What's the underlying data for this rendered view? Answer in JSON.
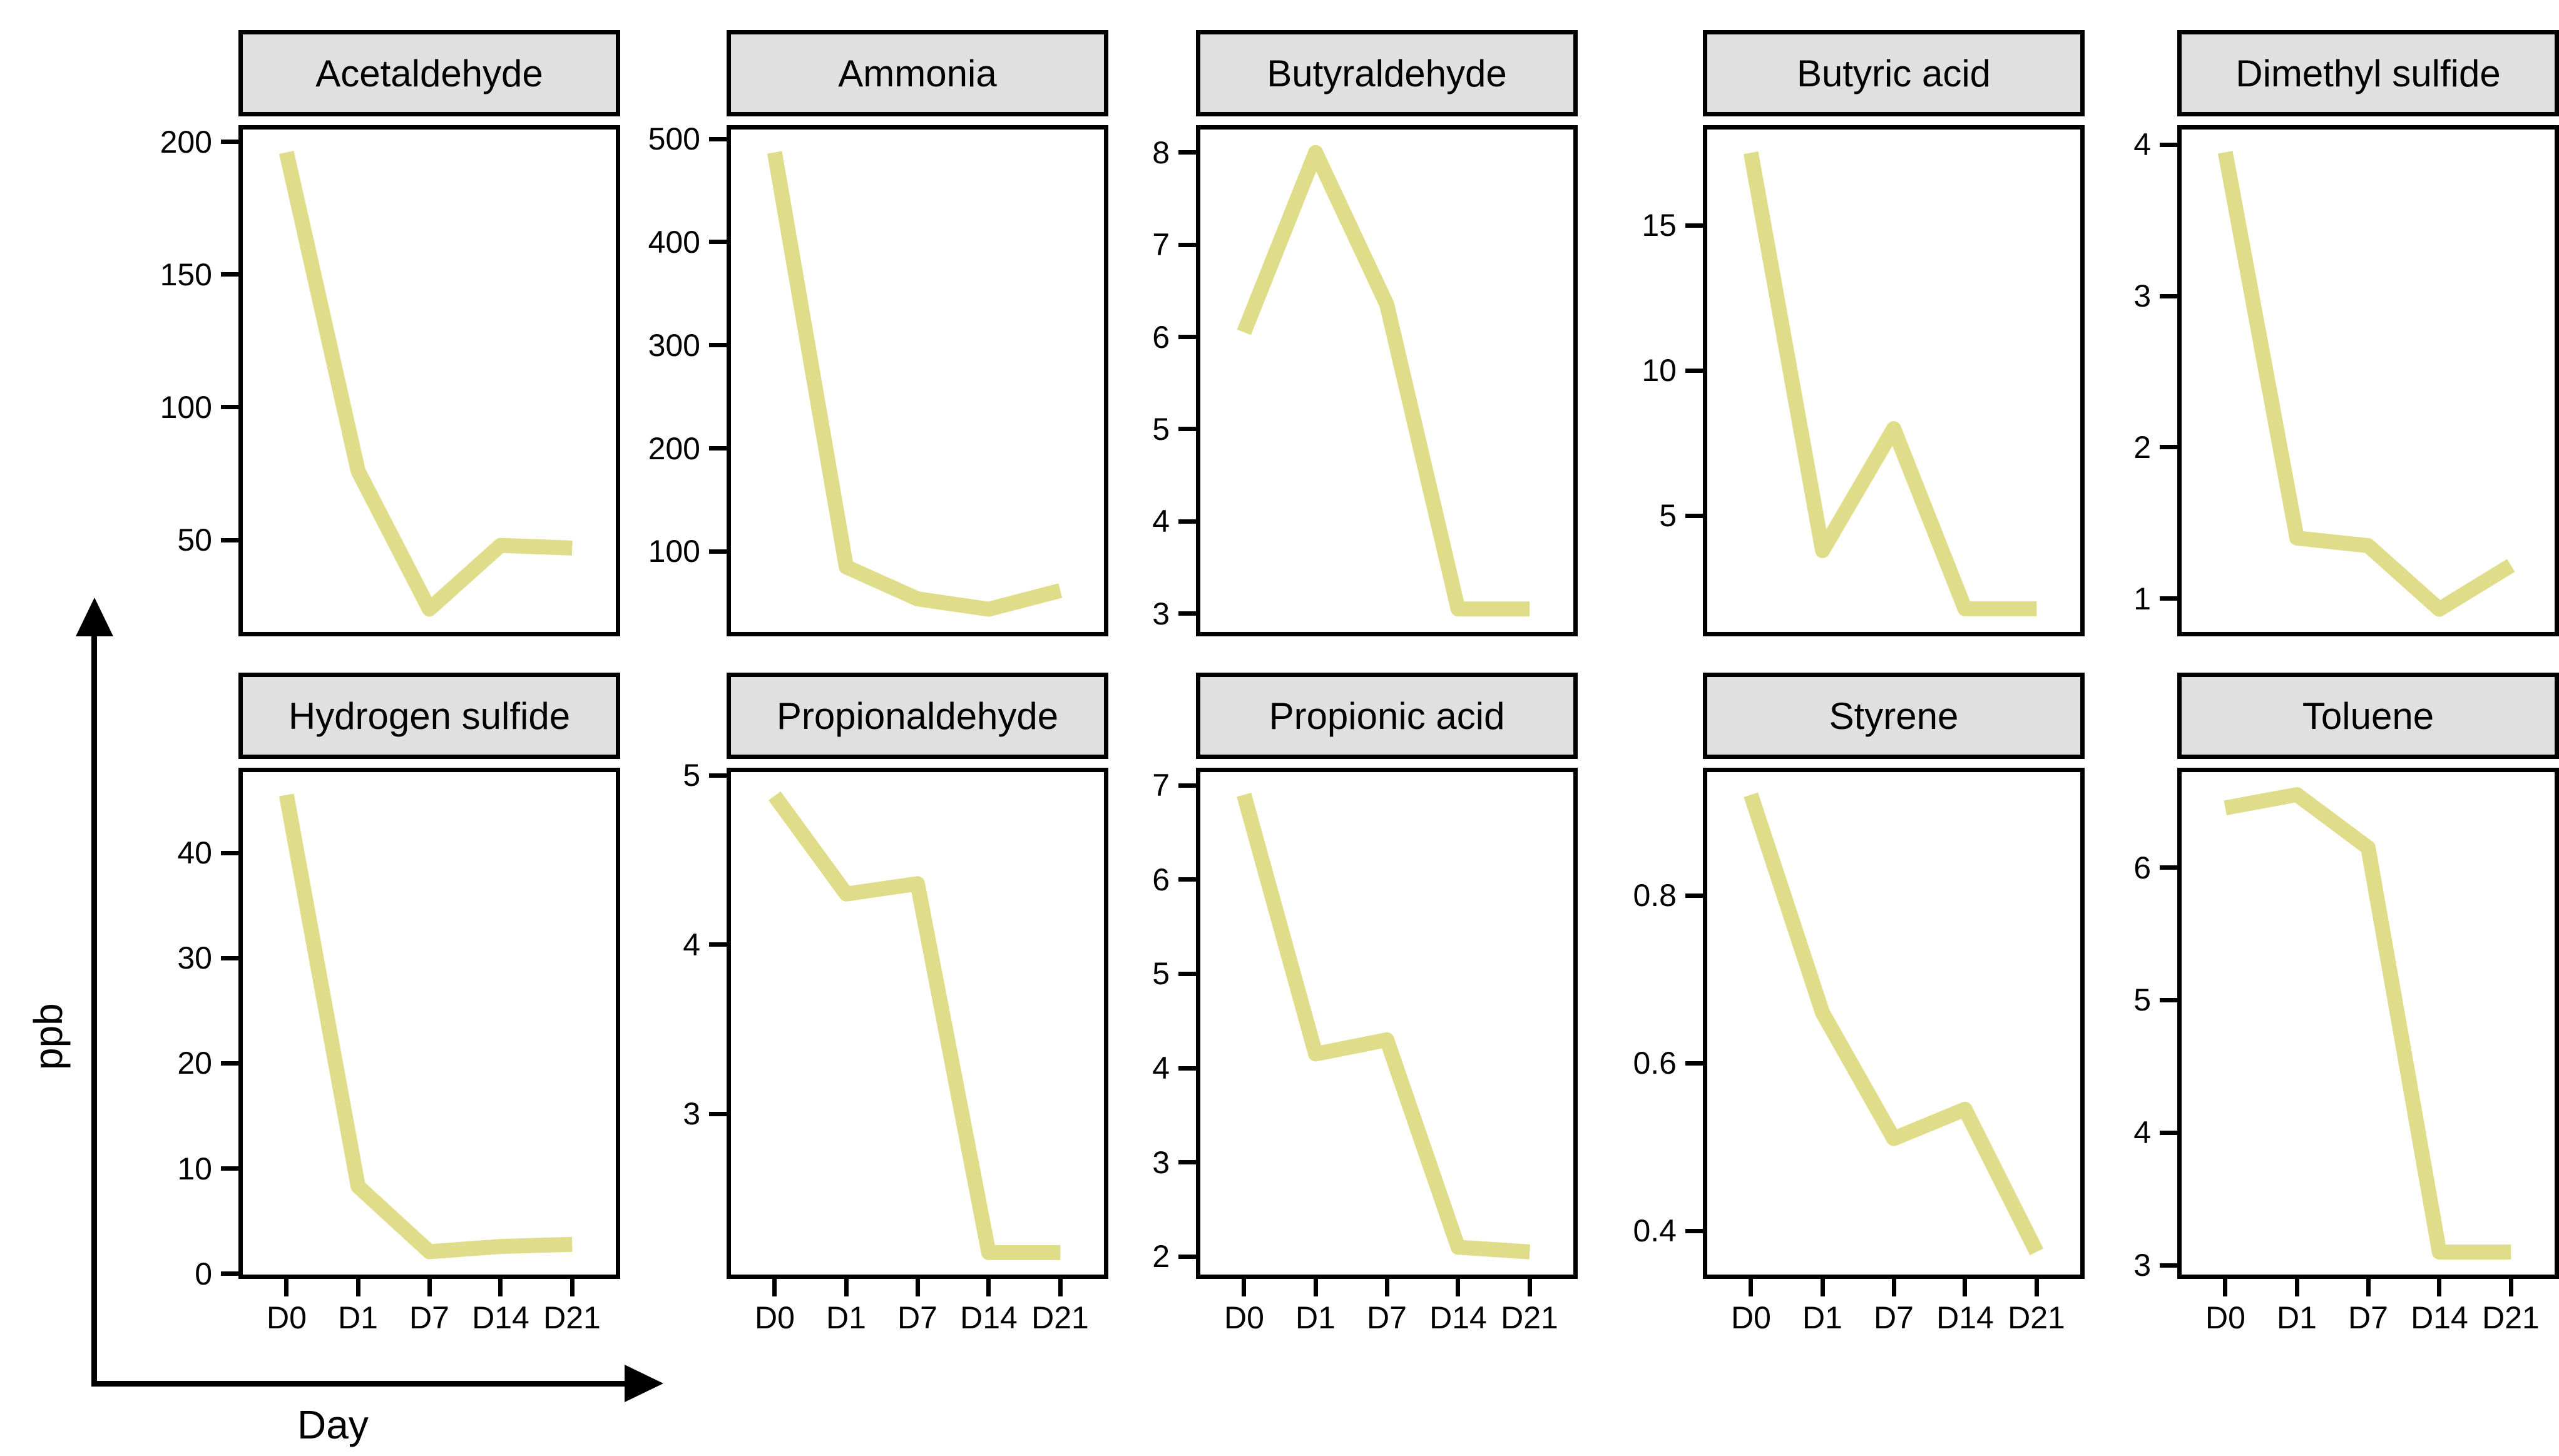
{
  "figure": {
    "y_axis_label": "ppb",
    "x_axis_label": "Day",
    "line_color": "#e0dd8a",
    "strip_background": "#e0e0e0",
    "border_color": "#000000",
    "text_color": "#000000"
  },
  "chart_data": [
    {
      "type": "line",
      "title": "Acetaldehyde",
      "categories": [
        "D0",
        "D1",
        "D7",
        "D14",
        "D21"
      ],
      "values": [
        196,
        76,
        24,
        48,
        47
      ],
      "y_ticks": [
        50,
        100,
        150,
        200
      ],
      "ylim": [
        15.4,
        204.6
      ],
      "xlabel": "Day",
      "ylabel": "ppb",
      "grid": "off",
      "legend": "none"
    },
    {
      "type": "line",
      "title": "Ammonia",
      "categories": [
        "D0",
        "D1",
        "D7",
        "D14",
        "D21"
      ],
      "values": [
        487,
        85,
        54,
        44,
        62
      ],
      "y_ticks": [
        100,
        200,
        300,
        400,
        500
      ],
      "ylim": [
        21.9,
        509.2
      ],
      "xlabel": "Day",
      "ylabel": "ppb",
      "grid": "off",
      "legend": "none"
    },
    {
      "type": "line",
      "title": "Butyraldehyde",
      "categories": [
        "D0",
        "D1",
        "D7",
        "D14",
        "D21"
      ],
      "values": [
        6.05,
        8.0,
        6.35,
        3.05,
        3.05
      ],
      "y_ticks": [
        3,
        4,
        5,
        6,
        7,
        8
      ],
      "ylim": [
        2.8,
        8.25
      ],
      "xlabel": "Day",
      "ylabel": "ppb",
      "grid": "off",
      "legend": "none"
    },
    {
      "type": "line",
      "title": "Butyric acid",
      "categories": [
        "D0",
        "D1",
        "D7",
        "D14",
        "D21"
      ],
      "values": [
        17.5,
        3.8,
        8.0,
        1.8,
        1.8
      ],
      "y_ticks": [
        5,
        10,
        15
      ],
      "ylim": [
        1.0,
        18.3
      ],
      "xlabel": "Day",
      "ylabel": "ppb",
      "grid": "off",
      "legend": "none"
    },
    {
      "type": "line",
      "title": "Dimethyl sulfide",
      "categories": [
        "D0",
        "D1",
        "D7",
        "D14",
        "D21"
      ],
      "values": [
        3.95,
        1.4,
        1.35,
        0.93,
        1.22
      ],
      "y_ticks": [
        1,
        2,
        3,
        4
      ],
      "ylim": [
        0.78,
        4.1
      ],
      "xlabel": "Day",
      "ylabel": "ppb",
      "grid": "off",
      "legend": "none"
    },
    {
      "type": "line",
      "title": "Hydrogen sulfide",
      "categories": [
        "D0",
        "D1",
        "D7",
        "D14",
        "D21"
      ],
      "values": [
        45.5,
        8.3,
        2.1,
        2.6,
        2.8
      ],
      "y_ticks": [
        0,
        10,
        20,
        30,
        40
      ],
      "ylim": [
        -0.07,
        47.67
      ],
      "xlabel": "Day",
      "ylabel": "ppb",
      "grid": "off",
      "legend": "none"
    },
    {
      "type": "line",
      "title": "Propionaldehyde",
      "categories": [
        "D0",
        "D1",
        "D7",
        "D14",
        "D21"
      ],
      "values": [
        4.88,
        4.3,
        4.36,
        2.18,
        2.18
      ],
      "y_ticks": [
        3,
        4,
        5
      ],
      "ylim": [
        2.05,
        5.02
      ],
      "xlabel": "Day",
      "ylabel": "ppb",
      "grid": "off",
      "legend": "none"
    },
    {
      "type": "line",
      "title": "Propionic acid",
      "categories": [
        "D0",
        "D1",
        "D7",
        "D14",
        "D21"
      ],
      "values": [
        6.9,
        4.15,
        4.3,
        2.1,
        2.05
      ],
      "y_ticks": [
        2,
        3,
        4,
        5,
        6,
        7
      ],
      "ylim": [
        1.81,
        7.14
      ],
      "xlabel": "Day",
      "ylabel": "ppb",
      "grid": "off",
      "legend": "none"
    },
    {
      "type": "line",
      "title": "Styrene",
      "categories": [
        "D0",
        "D1",
        "D7",
        "D14",
        "D21"
      ],
      "values": [
        0.92,
        0.66,
        0.51,
        0.545,
        0.375
      ],
      "y_ticks": [
        0.4,
        0.6,
        0.8
      ],
      "ylim": [
        0.348,
        0.947
      ],
      "xlabel": "Day",
      "ylabel": "ppb",
      "grid": "off",
      "legend": "none"
    },
    {
      "type": "line",
      "title": "Toluene",
      "categories": [
        "D0",
        "D1",
        "D7",
        "D14",
        "D21"
      ],
      "values": [
        6.45,
        6.55,
        6.15,
        3.1,
        3.1
      ],
      "y_ticks": [
        3,
        4,
        5,
        6
      ],
      "ylim": [
        2.93,
        6.72
      ],
      "xlabel": "Day",
      "ylabel": "ppb",
      "grid": "off",
      "legend": "none"
    }
  ]
}
